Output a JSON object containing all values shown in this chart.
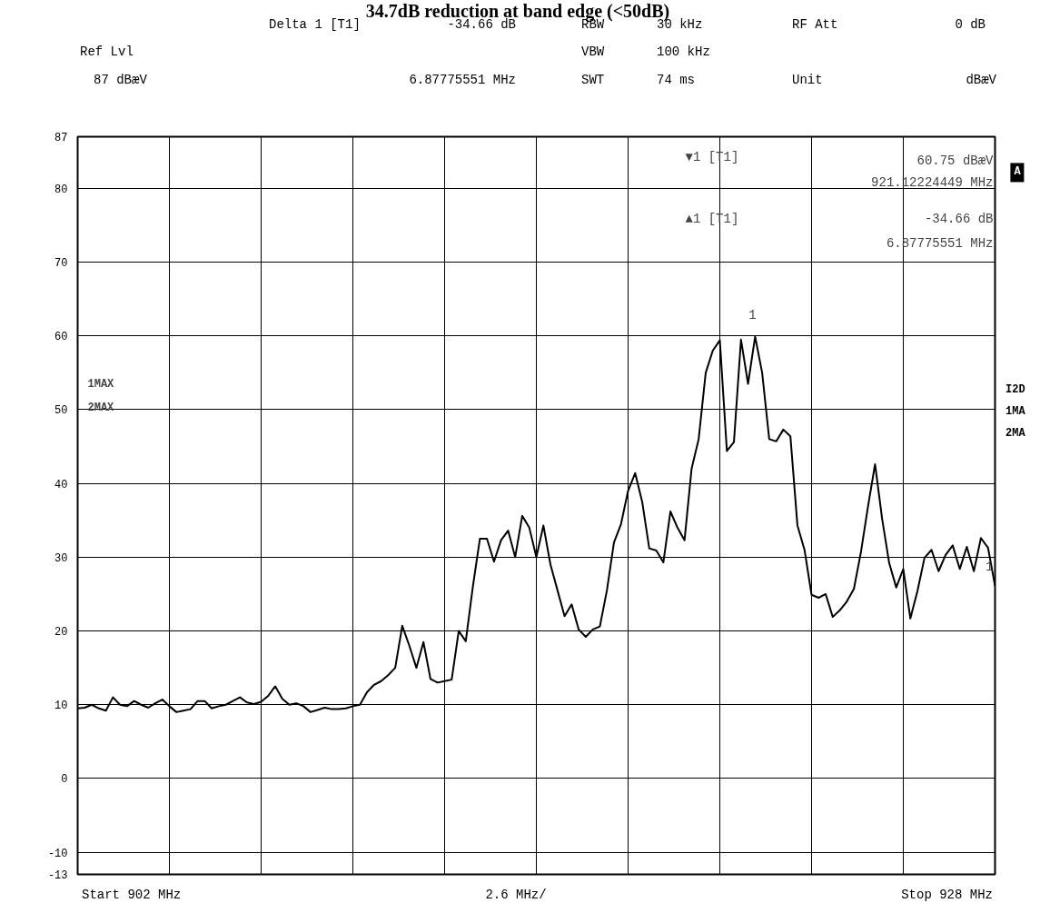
{
  "chart_data": {
    "type": "line",
    "title": "34.7dB reduction at band edge (<50dB)",
    "categories": [
      null,
      null,
      null,
      null,
      null,
      null,
      null,
      null,
      null,
      null,
      null,
      null,
      null,
      null,
      null,
      null,
      null,
      null,
      null,
      null,
      null,
      null,
      null,
      null,
      null,
      null,
      null,
      null,
      null,
      null,
      null,
      null,
      null,
      null,
      null,
      null,
      null,
      null,
      null,
      null,
      null,
      null,
      null,
      null,
      null,
      null,
      null,
      null,
      null,
      null,
      null,
      null,
      null,
      null,
      null,
      null,
      null,
      null,
      null,
      null,
      null,
      null,
      null,
      null,
      null,
      null,
      null,
      null,
      null,
      null,
      null,
      null,
      null,
      null,
      null,
      null,
      null,
      null,
      null,
      null,
      null,
      null,
      null,
      null,
      null,
      null,
      null,
      null,
      null,
      null,
      null,
      null,
      null,
      null,
      null,
      null,
      null,
      null,
      null,
      null,
      null,
      null,
      null,
      null,
      null,
      null,
      null,
      null,
      null,
      null,
      null,
      null,
      null,
      null,
      null,
      null,
      null,
      null,
      null,
      null,
      null,
      null,
      null,
      null,
      null,
      null,
      null,
      null,
      null,
      null,
      null
    ],
    "ylim": [
      -13,
      87
    ],
    "yticks": [
      -13,
      -10,
      0,
      10,
      20,
      30,
      40,
      50,
      60,
      70,
      80,
      87
    ],
    "tick_labels": "y",
    "grid": true,
    "line_style": "solid",
    "series": [
      {
        "color": "#000000",
        "values": [
          9.5,
          9.6,
          10.0,
          9.5,
          9.2,
          11,
          10,
          9.8,
          10.5,
          10,
          9.6,
          10.2,
          10.7,
          9.8,
          9,
          9.2,
          9.4,
          10.5,
          10.5,
          9.5,
          9.8,
          10,
          10.5,
          11,
          10.3,
          10.1,
          10.4,
          11.2,
          12.5,
          10.8,
          10,
          10.2,
          9.8,
          9,
          9.3,
          9.6,
          9.4,
          9.4,
          9.5,
          9.8,
          10,
          11.7,
          12.7,
          13.2,
          14,
          15,
          20.7,
          18,
          15,
          18.5,
          13.5,
          13,
          13.2,
          13.4,
          20,
          18.6,
          26,
          32.5,
          32.5,
          29.4,
          32.3,
          33.6,
          30,
          35.6,
          34,
          30,
          34.3,
          29,
          25.5,
          22,
          23.6,
          20.2,
          19.2,
          20.2,
          20.6,
          25.5,
          32,
          34.5,
          39,
          41.4,
          37.5,
          31.2,
          30.9,
          29.3,
          36.2,
          34,
          32.3,
          42,
          46,
          55,
          58,
          59.4,
          44.4,
          45.6,
          59.5,
          53.5,
          59.9,
          55,
          46,
          45.7,
          47.3,
          46.4,
          34.3,
          31,
          24.9,
          24.5,
          25,
          21.9,
          22.8,
          24,
          25.7,
          30.7,
          36.9,
          42.6,
          35.2,
          29.2,
          25.9,
          28.4,
          21.7,
          25.4,
          29.9,
          31,
          28.1,
          30.3,
          31.6,
          28.4,
          31.4,
          28.1,
          32.6,
          31.3,
          26.1
        ]
      }
    ],
    "annotations": [
      "Delta 1 [T1]",
      "-34.66 dB",
      "RBW",
      "30 kHz",
      "RF Att",
      "0 dB",
      "Ref Lvl",
      "VBW",
      "100 kHz",
      "87 dBæV",
      "6.87775551 MHz",
      "SWT",
      "74 ms",
      "Unit",
      "dBæV",
      "▼1 [T1]",
      "60.75 dBæV",
      "921.12224449 MHz",
      "▲1 [T1]",
      "-34.66 dB",
      "6.87775551 MHz",
      "1MAX",
      "2MAX",
      "I2D",
      "1MA",
      "2MA",
      "A",
      "Start 902 MHz",
      "2.6 MHz/",
      "Stop 928 MHz",
      "1",
      "1"
    ]
  }
}
